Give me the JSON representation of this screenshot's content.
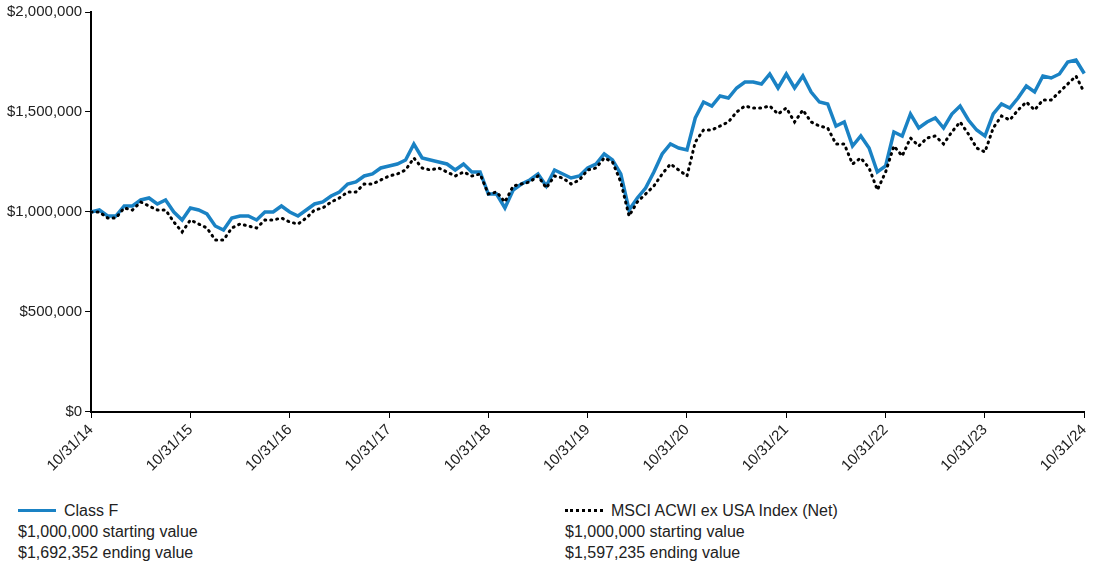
{
  "chart_data": {
    "type": "line",
    "categories": [
      "10/31/14",
      null,
      null,
      null,
      null,
      null,
      null,
      null,
      null,
      null,
      null,
      null,
      "10/31/15",
      null,
      null,
      null,
      null,
      null,
      null,
      null,
      null,
      null,
      null,
      null,
      "10/31/16",
      null,
      null,
      null,
      null,
      null,
      null,
      null,
      null,
      null,
      null,
      null,
      "10/31/17",
      null,
      null,
      null,
      null,
      null,
      null,
      null,
      null,
      null,
      null,
      null,
      "10/31/18",
      null,
      null,
      null,
      null,
      null,
      null,
      null,
      null,
      null,
      null,
      null,
      "10/31/19",
      null,
      null,
      null,
      null,
      null,
      null,
      null,
      null,
      null,
      null,
      null,
      "10/31/20",
      null,
      null,
      null,
      null,
      null,
      null,
      null,
      null,
      null,
      null,
      null,
      "10/31/21",
      null,
      null,
      null,
      null,
      null,
      null,
      null,
      null,
      null,
      null,
      null,
      "10/31/22",
      null,
      null,
      null,
      null,
      null,
      null,
      null,
      null,
      null,
      null,
      null,
      "10/31/23",
      null,
      null,
      null,
      null,
      null,
      null,
      null,
      null,
      null,
      null,
      null,
      "10/31/24"
    ],
    "series": [
      {
        "name": "Class F",
        "color": "#1a82c4",
        "line_style": "solid",
        "legend_details": [
          "$1,000,000 starting value",
          "$1,692,352 ending value"
        ],
        "values": [
          1000000,
          1010000,
          980000,
          980000,
          1030000,
          1030000,
          1060000,
          1070000,
          1040000,
          1060000,
          1000000,
          960000,
          1020000,
          1010000,
          990000,
          930000,
          910000,
          970000,
          980000,
          980000,
          960000,
          1000000,
          1000000,
          1030000,
          1000000,
          980000,
          1010000,
          1040000,
          1050000,
          1080000,
          1100000,
          1140000,
          1150000,
          1180000,
          1190000,
          1220000,
          1230000,
          1240000,
          1260000,
          1340000,
          1270000,
          1260000,
          1250000,
          1240000,
          1210000,
          1240000,
          1200000,
          1200000,
          1090000,
          1090000,
          1020000,
          1110000,
          1140000,
          1160000,
          1190000,
          1130000,
          1210000,
          1190000,
          1170000,
          1180000,
          1220000,
          1240000,
          1290000,
          1260000,
          1190000,
          1010000,
          1070000,
          1120000,
          1200000,
          1290000,
          1340000,
          1320000,
          1310000,
          1470000,
          1550000,
          1530000,
          1580000,
          1570000,
          1620000,
          1650000,
          1650000,
          1640000,
          1690000,
          1620000,
          1690000,
          1620000,
          1680000,
          1600000,
          1550000,
          1540000,
          1430000,
          1450000,
          1330000,
          1380000,
          1320000,
          1200000,
          1230000,
          1400000,
          1380000,
          1490000,
          1420000,
          1450000,
          1470000,
          1420000,
          1490000,
          1530000,
          1460000,
          1410000,
          1380000,
          1490000,
          1540000,
          1520000,
          1570000,
          1630000,
          1600000,
          1680000,
          1670000,
          1690000,
          1750000,
          1760000,
          1692352
        ]
      },
      {
        "name": "MSCI ACWI ex USA Index (Net)",
        "color": "#000000",
        "line_style": "dotted",
        "legend_details": [
          "$1,000,000 starting value",
          "$1,597,235 ending value"
        ],
        "values": [
          1000000,
          1000000,
          970000,
          970000,
          1020000,
          1010000,
          1050000,
          1030000,
          1010000,
          1010000,
          950000,
          900000,
          960000,
          940000,
          920000,
          860000,
          860000,
          920000,
          940000,
          930000,
          920000,
          960000,
          960000,
          970000,
          950000,
          940000,
          970000,
          1010000,
          1020000,
          1050000,
          1070000,
          1100000,
          1100000,
          1140000,
          1140000,
          1160000,
          1180000,
          1190000,
          1210000,
          1270000,
          1220000,
          1210000,
          1220000,
          1200000,
          1180000,
          1200000,
          1180000,
          1190000,
          1090000,
          1100000,
          1050000,
          1130000,
          1140000,
          1150000,
          1180000,
          1120000,
          1180000,
          1170000,
          1140000,
          1160000,
          1210000,
          1220000,
          1270000,
          1250000,
          1150000,
          980000,
          1050000,
          1090000,
          1130000,
          1190000,
          1240000,
          1210000,
          1180000,
          1350000,
          1410000,
          1410000,
          1430000,
          1450000,
          1500000,
          1530000,
          1520000,
          1520000,
          1530000,
          1490000,
          1520000,
          1450000,
          1510000,
          1450000,
          1430000,
          1420000,
          1340000,
          1340000,
          1240000,
          1270000,
          1220000,
          1110000,
          1200000,
          1330000,
          1280000,
          1370000,
          1330000,
          1370000,
          1380000,
          1340000,
          1400000,
          1450000,
          1390000,
          1320000,
          1300000,
          1420000,
          1480000,
          1460000,
          1510000,
          1550000,
          1510000,
          1560000,
          1560000,
          1600000,
          1640000,
          1680000,
          1597235
        ]
      }
    ],
    "ylim": [
      0,
      2000000
    ],
    "yticks": [
      {
        "value": 0,
        "label": "$0"
      },
      {
        "value": 500000,
        "label": "$500,000"
      },
      {
        "value": 1000000,
        "label": "$1,000,000"
      },
      {
        "value": 1500000,
        "label": "$1,500,000"
      },
      {
        "value": 2000000,
        "label": "$2,000,000"
      }
    ],
    "grid": false,
    "legend": "bottom"
  }
}
